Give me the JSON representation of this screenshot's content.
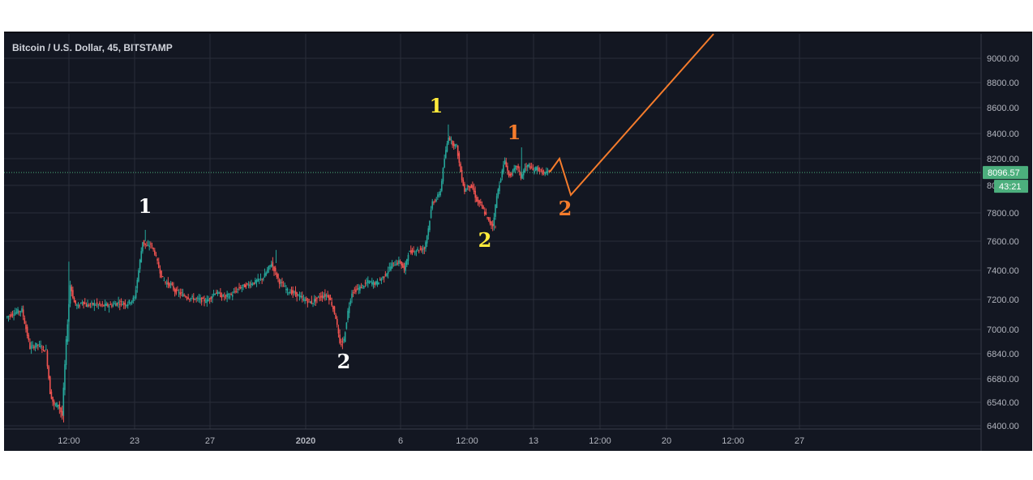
{
  "chart_data": {
    "type": "candlestick",
    "title": "Bitcoin / U.S. Dollar, 45, BITSTAMP",
    "x_ticks": [
      "12:00",
      "23",
      "27",
      "2020",
      "6",
      "12:00",
      "13",
      "12:00",
      "20",
      "12:00",
      "27"
    ],
    "y_ticks": [
      "6400.00",
      "6540.00",
      "6680.00",
      "6840.00",
      "7000.00",
      "7200.00",
      "7400.00",
      "7600.00",
      "7800.00",
      "8000.00",
      "8200.00",
      "8400.00",
      "8600.00",
      "8800.00",
      "9000.00"
    ],
    "ylim": [
      6400,
      9100
    ],
    "last_price": "8096.57",
    "countdown": "43:21",
    "price_path": [
      [
        0,
        7080
      ],
      [
        2,
        7110
      ],
      [
        4,
        7130
      ],
      [
        6,
        6880
      ],
      [
        8,
        6900
      ],
      [
        10,
        6860
      ],
      [
        11,
        6600
      ],
      [
        12,
        6520
      ],
      [
        13,
        6530
      ],
      [
        14,
        6460
      ],
      [
        15,
        6920
      ],
      [
        16,
        7300
      ],
      [
        17,
        7180
      ],
      [
        18,
        7150
      ],
      [
        19,
        7190
      ],
      [
        20,
        7160
      ],
      [
        22,
        7170
      ],
      [
        24,
        7160
      ],
      [
        26,
        7160
      ],
      [
        28,
        7180
      ],
      [
        30,
        7170
      ],
      [
        32,
        7210
      ],
      [
        33,
        7400
      ],
      [
        34,
        7600
      ],
      [
        35,
        7560
      ],
      [
        36,
        7580
      ],
      [
        37,
        7520
      ],
      [
        38,
        7420
      ],
      [
        39,
        7340
      ],
      [
        40,
        7310
      ],
      [
        41,
        7300
      ],
      [
        42,
        7260
      ],
      [
        44,
        7230
      ],
      [
        46,
        7210
      ],
      [
        48,
        7200
      ],
      [
        50,
        7190
      ],
      [
        52,
        7250
      ],
      [
        54,
        7220
      ],
      [
        56,
        7230
      ],
      [
        58,
        7280
      ],
      [
        60,
        7300
      ],
      [
        62,
        7320
      ],
      [
        64,
        7350
      ],
      [
        66,
        7450
      ],
      [
        68,
        7320
      ],
      [
        70,
        7260
      ],
      [
        72,
        7240
      ],
      [
        74,
        7200
      ],
      [
        76,
        7180
      ],
      [
        78,
        7220
      ],
      [
        80,
        7230
      ],
      [
        81,
        7170
      ],
      [
        82,
        7080
      ],
      [
        83,
        6900
      ],
      [
        84,
        6930
      ],
      [
        85,
        7120
      ],
      [
        86,
        7250
      ],
      [
        88,
        7280
      ],
      [
        90,
        7320
      ],
      [
        92,
        7310
      ],
      [
        94,
        7360
      ],
      [
        96,
        7440
      ],
      [
        98,
        7460
      ],
      [
        99,
        7400
      ],
      [
        100,
        7520
      ],
      [
        102,
        7540
      ],
      [
        104,
        7550
      ],
      [
        105,
        7690
      ],
      [
        106,
        7880
      ],
      [
        107,
        7900
      ],
      [
        108,
        7960
      ],
      [
        109,
        8200
      ],
      [
        110,
        8380
      ],
      [
        111,
        8320
      ],
      [
        112,
        8300
      ],
      [
        113,
        8100
      ],
      [
        114,
        7960
      ],
      [
        115,
        8000
      ],
      [
        116,
        7980
      ],
      [
        117,
        7890
      ],
      [
        118,
        7860
      ],
      [
        119,
        7800
      ],
      [
        120,
        7740
      ],
      [
        121,
        7710
      ],
      [
        122,
        7920
      ],
      [
        123,
        8060
      ],
      [
        124,
        8190
      ],
      [
        125,
        8070
      ],
      [
        126,
        8100
      ],
      [
        127,
        8150
      ],
      [
        128,
        8060
      ],
      [
        129,
        8130
      ],
      [
        130,
        8150
      ],
      [
        131,
        8110
      ],
      [
        132,
        8130
      ],
      [
        133,
        8100
      ],
      [
        134,
        8090
      ],
      [
        135,
        8100
      ]
    ],
    "projection": [
      [
        8200
      ],
      [
        7930
      ],
      [
        9200
      ]
    ],
    "annotations": [
      {
        "text": "1",
        "color": "#ffffff"
      },
      {
        "text": "2",
        "color": "#ffffff"
      },
      {
        "text": "1",
        "color": "#ffeb3b"
      },
      {
        "text": "2",
        "color": "#ffeb3b"
      },
      {
        "text": "1",
        "color": "#f57c2c"
      },
      {
        "text": "2",
        "color": "#f57c2c"
      }
    ],
    "colors": {
      "up": "#26a69a",
      "down": "#ef5350",
      "accent": "#4caf7d",
      "projection": "#f57c2c"
    }
  }
}
